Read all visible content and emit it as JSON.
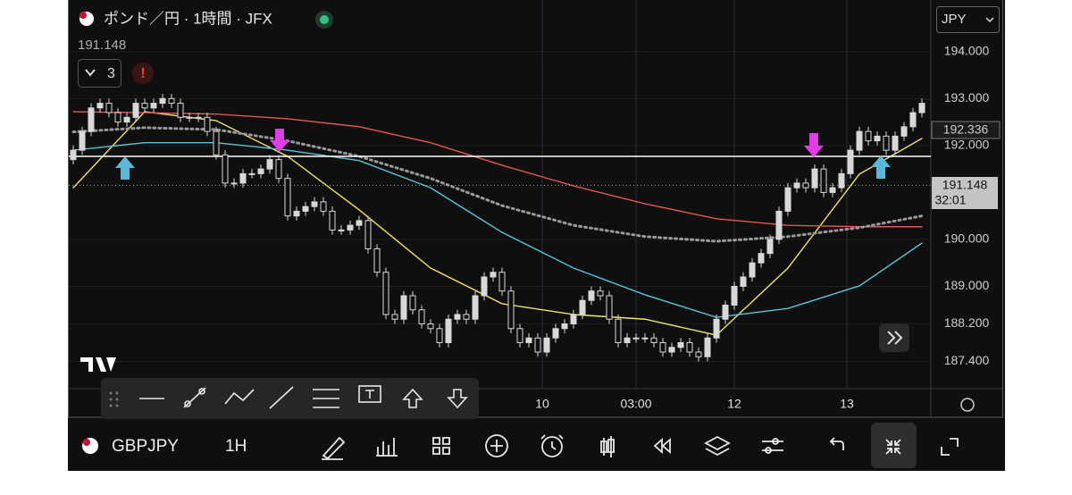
{
  "header": {
    "title": "ポンド／円 · 1時間 · JFX",
    "alert_count": "3",
    "currency": "JPY"
  },
  "chart_data": {
    "type": "candlestick",
    "ylim": [
      186.82,
      195.1
    ],
    "yticks": [
      {
        "value": 194,
        "label": "194.000"
      },
      {
        "value": 193,
        "label": "193.000"
      },
      {
        "value": 192,
        "label": "192.000"
      },
      {
        "value": 190,
        "label": "190.000"
      },
      {
        "value": 189,
        "label": "189.000"
      },
      {
        "value": 188.2,
        "label": "188.200"
      },
      {
        "value": 187.4,
        "label": "187.400"
      }
    ],
    "xlim": [
      -0.5,
      96
    ],
    "xticks": [
      {
        "value": 52.5,
        "label": "10"
      },
      {
        "value": 63,
        "label": "03:00"
      },
      {
        "value": 74,
        "label": "12"
      },
      {
        "value": 86.6,
        "label": "13"
      }
    ],
    "candle_color": "#d8d8d8",
    "candles": {
      "open": [
        191.7,
        191.9,
        192.3,
        192.8,
        192.9,
        192.7,
        192.5,
        192.6,
        192.9,
        192.8,
        192.9,
        193.0,
        192.9,
        192.6,
        192.6,
        192.6,
        192.3,
        191.8,
        191.2,
        191.2,
        191.4,
        191.4,
        191.5,
        191.7,
        191.3,
        190.5,
        190.6,
        190.7,
        190.8,
        190.6,
        190.2,
        190.2,
        190.3,
        190.4,
        189.8,
        189.3,
        188.4,
        188.3,
        188.8,
        188.5,
        188.2,
        188.1,
        187.8,
        188.3,
        188.4,
        188.3,
        188.8,
        189.2,
        189.3,
        188.9,
        188.1,
        187.8,
        187.9,
        187.6,
        187.9,
        188.1,
        188.2,
        188.4,
        188.7,
        188.9,
        188.8,
        188.3,
        187.8,
        187.9,
        187.9,
        187.9,
        187.8,
        187.6,
        187.7,
        187.8,
        187.6,
        187.5,
        187.9,
        188.3,
        188.6,
        189.0,
        189.2,
        189.5,
        189.7,
        190.0,
        190.6,
        191.1,
        191.2,
        191.1,
        191.5,
        191.0,
        191.1,
        191.4,
        191.9,
        192.3,
        192.1,
        192.2,
        191.9,
        192.2,
        192.4,
        192.7
      ],
      "high": [
        192.0,
        192.4,
        192.9,
        193.0,
        193.0,
        192.8,
        192.7,
        193.0,
        193.0,
        193.0,
        193.1,
        193.1,
        193.0,
        192.7,
        192.7,
        192.7,
        192.4,
        191.9,
        191.3,
        191.5,
        191.5,
        191.6,
        191.8,
        191.8,
        191.4,
        190.7,
        190.8,
        190.9,
        190.9,
        190.7,
        190.3,
        190.4,
        190.5,
        190.5,
        189.9,
        189.4,
        188.5,
        188.9,
        188.9,
        188.6,
        188.3,
        188.2,
        188.4,
        188.5,
        188.5,
        188.9,
        189.3,
        189.4,
        189.4,
        189.0,
        188.2,
        188.0,
        188.0,
        188.0,
        188.2,
        188.3,
        188.5,
        188.8,
        189.0,
        189.0,
        188.9,
        188.4,
        188.0,
        188.0,
        188.0,
        188.0,
        187.9,
        187.8,
        187.9,
        187.9,
        187.7,
        188.0,
        188.4,
        188.7,
        189.1,
        189.3,
        189.6,
        189.8,
        190.1,
        190.7,
        191.2,
        191.3,
        191.3,
        191.6,
        191.6,
        191.2,
        191.5,
        192.0,
        192.4,
        192.4,
        192.3,
        192.3,
        192.3,
        192.5,
        192.8,
        193.0
      ],
      "low": [
        191.6,
        191.8,
        192.2,
        192.7,
        192.6,
        192.4,
        192.4,
        192.5,
        192.7,
        192.7,
        192.8,
        192.8,
        192.5,
        192.5,
        192.5,
        192.2,
        191.7,
        191.1,
        191.1,
        191.1,
        191.3,
        191.3,
        191.4,
        191.2,
        190.4,
        190.4,
        190.5,
        190.6,
        190.5,
        190.1,
        190.1,
        190.1,
        190.2,
        189.7,
        189.2,
        188.3,
        188.2,
        188.2,
        188.4,
        188.1,
        188.0,
        187.7,
        187.7,
        188.2,
        188.2,
        188.2,
        188.7,
        189.1,
        188.8,
        188.0,
        187.7,
        187.7,
        187.5,
        187.5,
        187.8,
        188.0,
        188.1,
        188.3,
        188.6,
        188.7,
        188.2,
        187.7,
        187.7,
        187.8,
        187.8,
        187.7,
        187.5,
        187.5,
        187.6,
        187.5,
        187.4,
        187.4,
        187.8,
        188.2,
        188.5,
        188.9,
        189.1,
        189.4,
        189.6,
        189.9,
        190.5,
        191.0,
        191.0,
        191.0,
        190.9,
        190.9,
        191.0,
        191.3,
        191.8,
        192.0,
        192.0,
        191.8,
        191.8,
        192.1,
        192.3,
        192.6
      ],
      "close": [
        191.9,
        192.3,
        192.8,
        192.9,
        192.7,
        192.5,
        192.6,
        192.9,
        192.8,
        192.9,
        193.0,
        192.9,
        192.6,
        192.6,
        192.6,
        192.3,
        191.8,
        191.2,
        191.2,
        191.4,
        191.4,
        191.5,
        191.7,
        191.3,
        190.5,
        190.6,
        190.7,
        190.8,
        190.6,
        190.2,
        190.2,
        190.3,
        190.4,
        189.8,
        189.3,
        188.4,
        188.3,
        188.8,
        188.5,
        188.2,
        188.1,
        187.8,
        188.3,
        188.4,
        188.3,
        188.8,
        189.2,
        189.3,
        188.9,
        188.1,
        187.8,
        187.9,
        187.6,
        187.9,
        188.1,
        188.2,
        188.4,
        188.7,
        188.9,
        188.8,
        188.3,
        187.8,
        187.9,
        187.9,
        187.9,
        187.8,
        187.6,
        187.7,
        187.8,
        187.6,
        187.5,
        187.9,
        188.3,
        188.6,
        189.0,
        189.2,
        189.5,
        189.7,
        190.0,
        190.6,
        191.1,
        191.2,
        191.1,
        191.5,
        191.0,
        191.1,
        191.4,
        191.9,
        192.3,
        192.1,
        192.2,
        191.9,
        192.2,
        192.4,
        192.7,
        192.9
      ]
    },
    "ma_x": [
      0,
      8,
      16,
      24,
      32,
      40,
      48,
      56,
      64,
      72,
      80,
      88,
      95
    ],
    "series": [
      {
        "color": "#f2e36b",
        "dash": false,
        "values": [
          191.1,
          192.72,
          192.53,
          191.77,
          190.63,
          189.39,
          188.63,
          188.4,
          188.3,
          187.96,
          189.39,
          191.39,
          192.15
        ]
      },
      {
        "color": "#5bc4dc",
        "dash": false,
        "values": [
          191.9,
          192.06,
          192.06,
          191.9,
          191.68,
          191.1,
          190.15,
          189.39,
          188.82,
          188.34,
          188.53,
          189.01,
          189.92
        ]
      },
      {
        "color": "#e5574f",
        "dash": false,
        "values": [
          192.72,
          192.7,
          192.67,
          192.57,
          192.4,
          192.06,
          191.58,
          191.14,
          190.76,
          190.44,
          190.3,
          190.27,
          190.27
        ]
      },
      {
        "color": "#9a9a9a",
        "dash": true,
        "values": [
          192.29,
          192.38,
          192.34,
          192.1,
          191.77,
          191.3,
          190.72,
          190.3,
          190.06,
          189.96,
          190.06,
          190.25,
          190.5
        ]
      }
    ],
    "hline": 191.77,
    "last_price": 191.148,
    "countdown": "32:01",
    "ma_label": 192.336
  },
  "toolbar": {
    "symbol": "GBPJPY",
    "interval": "1H"
  }
}
